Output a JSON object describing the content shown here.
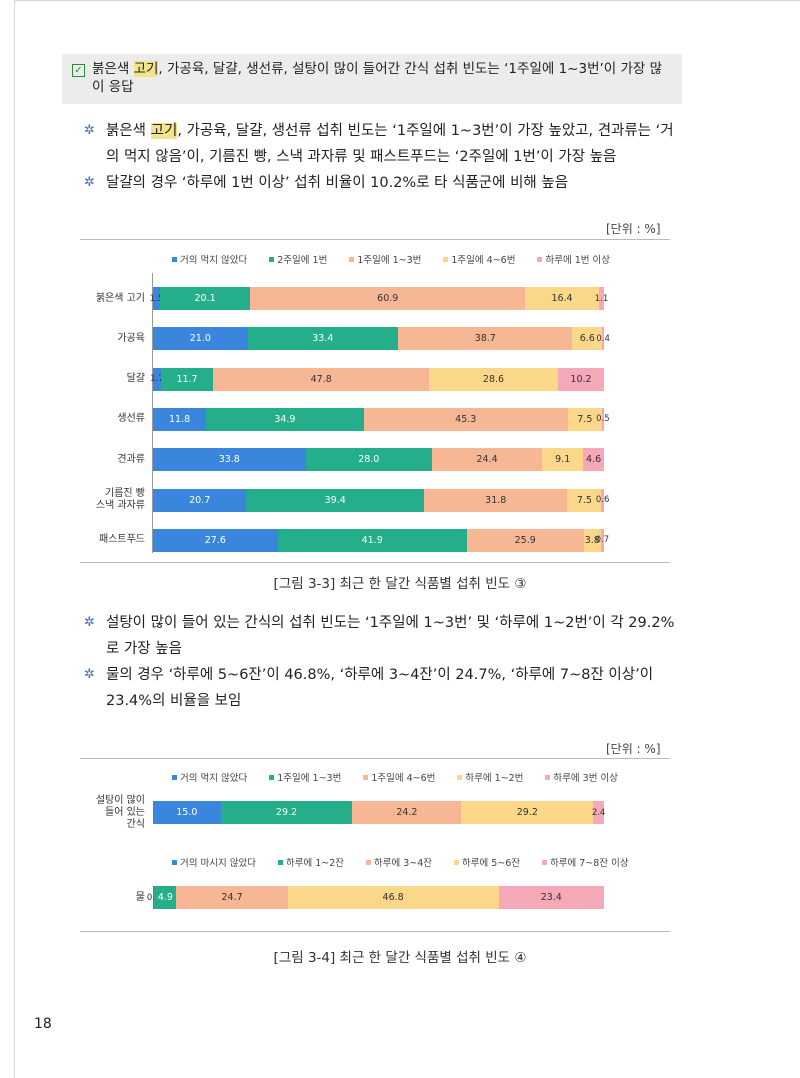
{
  "summary": {
    "check_icon": "checkbox-checked-icon",
    "text_pre": "붉은색 ",
    "text_hl": "고기",
    "text_post": ", 가공육, 달걀, 생선류, 설탕이 많이 들어간 간식 섭취 빈도는 ‘1주일에 1~3번’이 가장 많이 응답"
  },
  "bullets_top": [
    {
      "pre": "붉은색 ",
      "hl": "고기",
      "post": ", 가공육, 달걀, 생선류 섭취 빈도는 ‘1주일에 1~3번’이 가장 높았고, 견과류는 ‘거의 먹지 않음’이, 기름진 빵, 스낵 과자류 및 패스트푸드는 ‘2주일에 1번’이 가장 높음"
    },
    {
      "pre": "달걀의 경우 ‘하루에 1번 이상’ 섭취 비율이 10.2%로 타 식품군에 비해 높음",
      "hl": "",
      "post": ""
    }
  ],
  "unit_label": "[단위 : %]",
  "bullets_mid": [
    "설탕이 많이 들어 있는 간식의 섭취 빈도는 ‘1주일에 1~3번’ 및 ‘하루에 1~2번’이 각 29.2%로 가장 높음",
    "물의 경우 ‘하루에 5~6잔’이 46.8%, ‘하루에 3~4잔’이 24.7%, ‘하루에 7~8잔 이상’이 23.4%의 비율을 보임"
  ],
  "caption1": "[그림 3-3] 최근 한 달간 식품별 섭취 빈도 ③",
  "caption2": "[그림 3-4] 최근 한 달간 식품별 섭취 빈도 ④",
  "page_number": "18",
  "colors": [
    "#3b86dd",
    "#25ae8c",
    "#f7b795",
    "#fbd889",
    "#f5a9b8"
  ],
  "chart_data": [
    {
      "type": "bar",
      "stacked": true,
      "orientation": "horizontal",
      "title": "",
      "legend_placement": "top",
      "series_names": [
        "거의 먹지 않았다",
        "2주일에 1번",
        "1주일에 1~3번",
        "1주일에 4~6번",
        "하루에 1번 이상"
      ],
      "categories": [
        [
          "붉은색 고기"
        ],
        [
          "가공육"
        ],
        [
          "달걀"
        ],
        [
          "생선류"
        ],
        [
          "견과류"
        ],
        [
          "기름진 빵",
          "스낵 과자류"
        ],
        [
          "패스트푸드"
        ]
      ],
      "values": [
        [
          1.5,
          20.1,
          60.9,
          16.4,
          1.1
        ],
        [
          21.0,
          33.4,
          38.7,
          6.6,
          0.4
        ],
        [
          1.7,
          11.7,
          47.8,
          28.6,
          10.2
        ],
        [
          11.8,
          34.9,
          45.3,
          7.5,
          0.5
        ],
        [
          33.8,
          28.0,
          24.4,
          9.1,
          4.6
        ],
        [
          20.7,
          39.4,
          31.8,
          7.5,
          0.6
        ],
        [
          27.6,
          41.9,
          25.9,
          3.8,
          0.7
        ]
      ],
      "labels": [
        [
          "1.5",
          "20.1",
          "60.9",
          "16.4",
          "1.1"
        ],
        [
          "21.0",
          "33.4",
          "38.7",
          "6.6",
          "0.4"
        ],
        [
          "1.7",
          "11.7",
          "47.8",
          "28.6",
          "10.2"
        ],
        [
          "11.8",
          "34.9",
          "45.3",
          "7.5",
          "0.5"
        ],
        [
          "33.8",
          "28.0",
          "24.4",
          "9.1",
          "4.6"
        ],
        [
          "20.7",
          "39.4",
          "31.8",
          "7.5",
          "0.6"
        ],
        [
          "27.6",
          "41.9",
          "25.9",
          "3.8",
          "0.7"
        ]
      ]
    },
    {
      "type": "bar",
      "stacked": true,
      "orientation": "horizontal",
      "title": "",
      "legend_placement": "top",
      "series_names": [
        "거의 먹지 않았다",
        "1주일에 1~3번",
        "1주일에 4~6번",
        "하루에 1~2번",
        "하루에 3번 이상"
      ],
      "categories": [
        [
          "설탕이 많이",
          "들어 있는",
          "간식"
        ]
      ],
      "values": [
        [
          15.0,
          29.2,
          24.2,
          29.2,
          2.4
        ]
      ],
      "labels": [
        [
          "15.0",
          "29.2",
          "24.2",
          "29.2",
          "2.4"
        ]
      ]
    },
    {
      "type": "bar",
      "stacked": true,
      "orientation": "horizontal",
      "title": "",
      "legend_placement": "top",
      "series_names": [
        "거의 마시지 않았다",
        "하루에 1~2잔",
        "하루에 3~4잔",
        "하루에 5~6잔",
        "하루에 7~8잔 이상"
      ],
      "categories": [
        [
          "물"
        ]
      ],
      "values": [
        [
          0.3,
          4.9,
          24.7,
          46.8,
          23.4
        ]
      ],
      "labels": [
        [
          "0.3",
          "4.9",
          "24.7",
          "46.8",
          "23.4"
        ]
      ]
    }
  ]
}
